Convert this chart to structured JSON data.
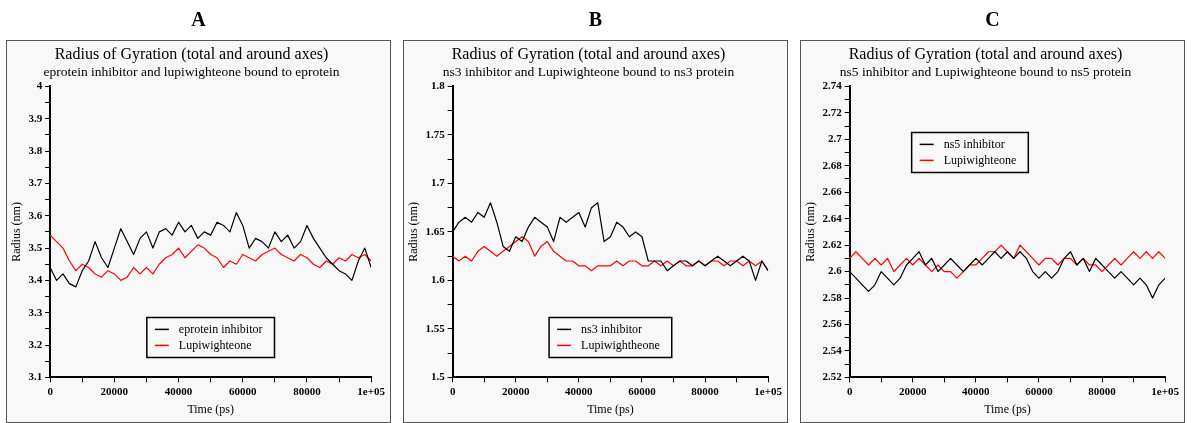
{
  "chart_data": [
    {
      "type": "line",
      "title": "Radius of Gyration (total and around axes)",
      "subtitle": "eprotein inhibitor and lupiwighteone bound to eprotein",
      "annotations": [
        "A"
      ],
      "xlabel": "Time (ps)",
      "ylabel": "Radius (nm)",
      "x": [
        0,
        2000,
        4000,
        6000,
        8000,
        10000,
        12000,
        14000,
        16000,
        18000,
        20000,
        22000,
        24000,
        26000,
        28000,
        30000,
        32000,
        34000,
        36000,
        38000,
        40000,
        42000,
        44000,
        46000,
        48000,
        50000,
        52000,
        54000,
        56000,
        58000,
        60000,
        62000,
        64000,
        66000,
        68000,
        70000,
        72000,
        74000,
        76000,
        78000,
        80000,
        82000,
        84000,
        86000,
        88000,
        90000,
        92000,
        94000,
        96000,
        98000,
        100000
      ],
      "series": [
        {
          "name": "eprotein inhibitor",
          "color": "#000000",
          "values": [
            3.44,
            3.4,
            3.42,
            3.39,
            3.38,
            3.43,
            3.46,
            3.52,
            3.47,
            3.44,
            3.5,
            3.56,
            3.52,
            3.48,
            3.53,
            3.55,
            3.5,
            3.55,
            3.56,
            3.54,
            3.58,
            3.55,
            3.57,
            3.53,
            3.55,
            3.54,
            3.58,
            3.57,
            3.55,
            3.61,
            3.57,
            3.5,
            3.53,
            3.52,
            3.5,
            3.55,
            3.52,
            3.54,
            3.5,
            3.52,
            3.57,
            3.53,
            3.5,
            3.47,
            3.45,
            3.43,
            3.42,
            3.4,
            3.46,
            3.5,
            3.44
          ]
        },
        {
          "name": "Lupiwighteone",
          "color": "#ff0000",
          "values": [
            3.54,
            3.52,
            3.5,
            3.46,
            3.43,
            3.45,
            3.44,
            3.42,
            3.41,
            3.43,
            3.42,
            3.4,
            3.41,
            3.44,
            3.42,
            3.44,
            3.42,
            3.45,
            3.47,
            3.48,
            3.5,
            3.47,
            3.49,
            3.51,
            3.5,
            3.48,
            3.47,
            3.44,
            3.46,
            3.45,
            3.48,
            3.47,
            3.46,
            3.48,
            3.49,
            3.5,
            3.48,
            3.47,
            3.46,
            3.48,
            3.47,
            3.45,
            3.44,
            3.46,
            3.45,
            3.47,
            3.46,
            3.48,
            3.47,
            3.48,
            3.46
          ]
        }
      ],
      "xlim": [
        0,
        100000
      ],
      "xticks": [
        0,
        {
          "value": 10000,
          "label": null
        },
        20000,
        {
          "value": 30000,
          "label": null
        },
        40000,
        {
          "value": 50000,
          "label": null
        },
        60000,
        {
          "value": 70000,
          "label": null
        },
        80000,
        {
          "value": 90000,
          "label": null
        },
        {
          "value": 100000,
          "label": "1e+05"
        }
      ],
      "ylim": [
        3.1,
        4
      ],
      "yticks": [
        3.1,
        {
          "value": 3.15,
          "label": null
        },
        3.2,
        {
          "value": 3.25,
          "label": null
        },
        3.3,
        {
          "value": 3.35,
          "label": null
        },
        3.4,
        {
          "value": 3.45,
          "label": null
        },
        3.5,
        {
          "value": 3.55,
          "label": null
        },
        3.6,
        {
          "value": 3.65,
          "label": null
        },
        3.7,
        {
          "value": 3.75,
          "label": null
        },
        3.8,
        {
          "value": 3.85,
          "label": null
        },
        3.9,
        {
          "value": 3.95,
          "label": null
        },
        4
      ],
      "legend": "bottom",
      "grid": false,
      "marker": "none",
      "line_style": "solid"
    },
    {
      "type": "line",
      "title": "Radius of Gyration (total and around axes)",
      "subtitle": "ns3 inhibitor and Lupiwighteone bound to ns3 protein",
      "annotations": [
        "B"
      ],
      "xlabel": "Time (ps)",
      "ylabel": "Radius (nm)",
      "x": [
        0,
        2000,
        4000,
        6000,
        8000,
        10000,
        12000,
        14000,
        16000,
        18000,
        20000,
        22000,
        24000,
        26000,
        28000,
        30000,
        32000,
        34000,
        36000,
        38000,
        40000,
        42000,
        44000,
        46000,
        48000,
        50000,
        52000,
        54000,
        56000,
        58000,
        60000,
        62000,
        64000,
        66000,
        68000,
        70000,
        72000,
        74000,
        76000,
        78000,
        80000,
        82000,
        84000,
        86000,
        88000,
        90000,
        92000,
        94000,
        96000,
        98000,
        100000
      ],
      "series": [
        {
          "name": "ns3 inhibitor",
          "color": "#000000",
          "values": [
            1.65,
            1.66,
            1.665,
            1.66,
            1.67,
            1.665,
            1.68,
            1.66,
            1.635,
            1.63,
            1.645,
            1.64,
            1.655,
            1.665,
            1.66,
            1.655,
            1.64,
            1.665,
            1.66,
            1.665,
            1.67,
            1.655,
            1.675,
            1.68,
            1.64,
            1.645,
            1.66,
            1.655,
            1.645,
            1.65,
            1.645,
            1.62,
            1.62,
            1.62,
            1.61,
            1.615,
            1.62,
            1.62,
            1.615,
            1.62,
            1.615,
            1.62,
            1.625,
            1.62,
            1.615,
            1.62,
            1.625,
            1.62,
            1.6,
            1.62,
            1.61
          ]
        },
        {
          "name": "Lupiwightheone",
          "color": "#ff0000",
          "values": [
            1.625,
            1.62,
            1.625,
            1.62,
            1.63,
            1.635,
            1.63,
            1.625,
            1.63,
            1.635,
            1.64,
            1.645,
            1.64,
            1.625,
            1.635,
            1.64,
            1.63,
            1.625,
            1.62,
            1.62,
            1.615,
            1.615,
            1.61,
            1.615,
            1.615,
            1.615,
            1.62,
            1.615,
            1.62,
            1.62,
            1.615,
            1.615,
            1.62,
            1.615,
            1.62,
            1.615,
            1.62,
            1.615,
            1.615,
            1.62,
            1.615,
            1.62,
            1.62,
            1.615,
            1.62,
            1.62,
            1.615,
            1.62,
            1.615,
            1.62,
            1.61
          ]
        }
      ],
      "xlim": [
        0,
        100000
      ],
      "xticks": [
        0,
        {
          "value": 10000,
          "label": null
        },
        20000,
        {
          "value": 30000,
          "label": null
        },
        40000,
        {
          "value": 50000,
          "label": null
        },
        60000,
        {
          "value": 70000,
          "label": null
        },
        80000,
        {
          "value": 90000,
          "label": null
        },
        {
          "value": 100000,
          "label": "1e+05"
        }
      ],
      "ylim": [
        1.5,
        1.8
      ],
      "yticks": [
        1.5,
        {
          "value": 1.525,
          "label": null
        },
        1.55,
        {
          "value": 1.575,
          "label": null
        },
        1.6,
        {
          "value": 1.625,
          "label": null
        },
        1.65,
        {
          "value": 1.675,
          "label": null
        },
        1.7,
        {
          "value": 1.725,
          "label": null
        },
        1.75,
        {
          "value": 1.775,
          "label": null
        },
        1.8
      ],
      "legend": "bottom",
      "grid": false,
      "marker": "none",
      "line_style": "solid"
    },
    {
      "type": "line",
      "title": "Radius of Gyration (total and around axes)",
      "subtitle": "ns5 inhibitor and Lupiwighteone bound to ns5 protein",
      "annotations": [
        "C"
      ],
      "xlabel": "Time (ps)",
      "ylabel": "Radius (nm)",
      "x": [
        0,
        2000,
        4000,
        6000,
        8000,
        10000,
        12000,
        14000,
        16000,
        18000,
        20000,
        22000,
        24000,
        26000,
        28000,
        30000,
        32000,
        34000,
        36000,
        38000,
        40000,
        42000,
        44000,
        46000,
        48000,
        50000,
        52000,
        54000,
        56000,
        58000,
        60000,
        62000,
        64000,
        66000,
        68000,
        70000,
        72000,
        74000,
        76000,
        78000,
        80000,
        82000,
        84000,
        86000,
        88000,
        90000,
        92000,
        94000,
        96000,
        98000,
        100000
      ],
      "series": [
        {
          "name": "ns5 inhibitor",
          "color": "#000000",
          "values": [
            2.6,
            2.595,
            2.59,
            2.585,
            2.59,
            2.6,
            2.595,
            2.59,
            2.595,
            2.605,
            2.61,
            2.615,
            2.605,
            2.61,
            2.6,
            2.605,
            2.61,
            2.605,
            2.6,
            2.605,
            2.61,
            2.605,
            2.61,
            2.615,
            2.61,
            2.615,
            2.61,
            2.615,
            2.61,
            2.6,
            2.595,
            2.6,
            2.595,
            2.6,
            2.61,
            2.615,
            2.605,
            2.61,
            2.6,
            2.61,
            2.605,
            2.6,
            2.595,
            2.6,
            2.595,
            2.59,
            2.595,
            2.59,
            2.58,
            2.59,
            2.595
          ]
        },
        {
          "name": "Lupiwighteone",
          "color": "#ff0000",
          "values": [
            2.61,
            2.615,
            2.61,
            2.605,
            2.61,
            2.605,
            2.61,
            2.6,
            2.605,
            2.61,
            2.605,
            2.61,
            2.605,
            2.6,
            2.605,
            2.6,
            2.6,
            2.595,
            2.6,
            2.605,
            2.605,
            2.61,
            2.615,
            2.615,
            2.62,
            2.615,
            2.61,
            2.62,
            2.615,
            2.61,
            2.605,
            2.61,
            2.61,
            2.605,
            2.61,
            2.61,
            2.605,
            2.61,
            2.605,
            2.605,
            2.6,
            2.605,
            2.61,
            2.605,
            2.61,
            2.615,
            2.61,
            2.615,
            2.61,
            2.615,
            2.61
          ]
        }
      ],
      "xlim": [
        0,
        100000
      ],
      "xticks": [
        0,
        {
          "value": 10000,
          "label": null
        },
        20000,
        {
          "value": 30000,
          "label": null
        },
        40000,
        {
          "value": 50000,
          "label": null
        },
        60000,
        {
          "value": 70000,
          "label": null
        },
        80000,
        {
          "value": 90000,
          "label": null
        },
        {
          "value": 100000,
          "label": "1e+05"
        }
      ],
      "ylim": [
        2.52,
        2.74
      ],
      "yticks": [
        2.52,
        {
          "value": 2.53,
          "label": null
        },
        2.54,
        {
          "value": 2.55,
          "label": null
        },
        2.56,
        {
          "value": 2.57,
          "label": null
        },
        2.58,
        {
          "value": 2.59,
          "label": null
        },
        2.6,
        {
          "value": 2.61,
          "label": null
        },
        2.62,
        {
          "value": 2.63,
          "label": null
        },
        2.64,
        {
          "value": 2.65,
          "label": null
        },
        2.66,
        {
          "value": 2.67,
          "label": null
        },
        2.68,
        {
          "value": 2.69,
          "label": null
        },
        2.7,
        {
          "value": 2.71,
          "label": null
        },
        2.72,
        {
          "value": 2.73,
          "label": null
        },
        2.74
      ],
      "legend": "top left",
      "grid": false,
      "marker": "none",
      "line_style": "solid"
    }
  ]
}
